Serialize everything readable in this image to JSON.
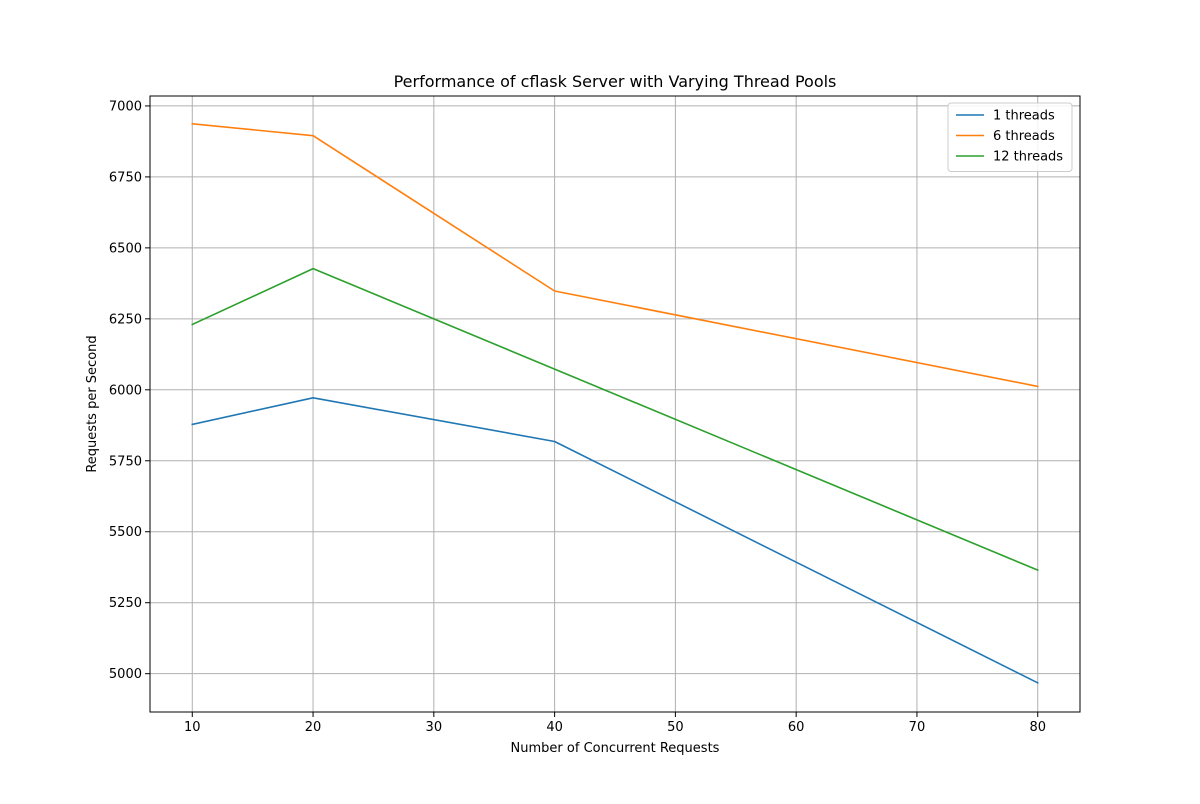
{
  "chart_data": {
    "type": "line",
    "title": "Performance of cflask Server with Varying Thread Pools",
    "xlabel": "Number of Concurrent Requests",
    "ylabel": "Requests per Second",
    "x": [
      10,
      20,
      40,
      80
    ],
    "xlim": [
      6.5,
      83.5
    ],
    "ylim": [
      4865,
      7035
    ],
    "xticks": [
      10,
      20,
      30,
      40,
      50,
      60,
      70,
      80
    ],
    "yticks": [
      5000,
      5250,
      5500,
      5750,
      6000,
      6250,
      6500,
      6750,
      7000
    ],
    "grid": true,
    "legend_position": "top-right",
    "series": [
      {
        "name": "1 threads",
        "color": "#1f77b4",
        "values": [
          5878,
          5972,
          5818,
          4968
        ]
      },
      {
        "name": "6 threads",
        "color": "#ff7f0e",
        "values": [
          6937,
          6895,
          6348,
          6012
        ]
      },
      {
        "name": "12 threads",
        "color": "#2ca02c",
        "values": [
          6230,
          6427,
          6073,
          5365
        ]
      }
    ]
  }
}
